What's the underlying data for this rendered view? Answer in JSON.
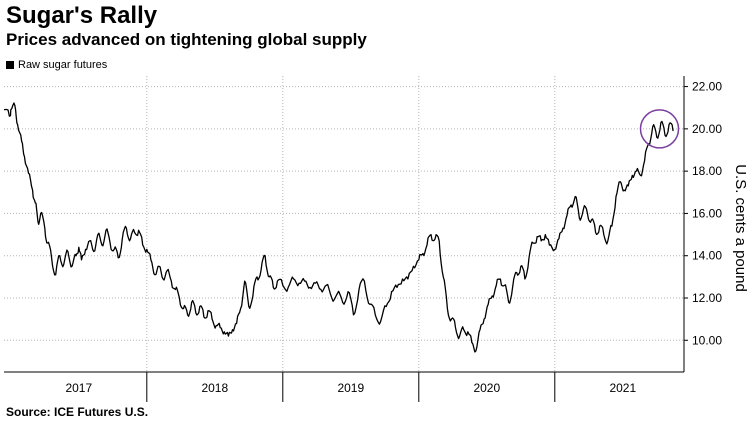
{
  "chart_data": {
    "type": "line",
    "title": "Sugar's Rally",
    "subtitle": "Prices advanced on tightening global supply",
    "source": "Source: ICE Futures U.S.",
    "ylabel": "U.S. cents a pound",
    "y_axis_position": "right",
    "ylim": [
      8.5,
      22.5
    ],
    "yticks": [
      "10.00",
      "12.00",
      "14.00",
      "16.00",
      "18.00",
      "20.00",
      "22.00"
    ],
    "xlim": [
      2016.95,
      2021.95
    ],
    "x_ticks": [
      {
        "label": "2017",
        "x": 2017.5
      },
      {
        "label": "2018",
        "x": 2018.5
      },
      {
        "label": "2019",
        "x": 2019.5
      },
      {
        "label": "2020",
        "x": 2020.5
      },
      {
        "label": "2021",
        "x": 2021.5
      }
    ],
    "x_separators": [
      2018.0,
      2019.0,
      2020.0,
      2021.0
    ],
    "grid": true,
    "legend": "top-left",
    "highlight": {
      "x": 2021.77,
      "y": 20.0,
      "shape": "circle",
      "color": "#7b3fa0"
    },
    "series": [
      {
        "name": "Raw sugar futures",
        "color": "#000000",
        "x": [
          2016.95,
          2016.99,
          2017.0,
          2017.03,
          2017.05,
          2017.08,
          2017.1,
          2017.13,
          2017.16,
          2017.18,
          2017.2,
          2017.22,
          2017.25,
          2017.27,
          2017.3,
          2017.33,
          2017.36,
          2017.39,
          2017.42,
          2017.45,
          2017.48,
          2017.5,
          2017.52,
          2017.55,
          2017.58,
          2017.61,
          2017.64,
          2017.67,
          2017.7,
          2017.73,
          2017.76,
          2017.79,
          2017.82,
          2017.85,
          2017.88,
          2017.91,
          2017.94,
          2017.97,
          2018.0,
          2018.03,
          2018.06,
          2018.09,
          2018.12,
          2018.15,
          2018.18,
          2018.21,
          2018.24,
          2018.27,
          2018.3,
          2018.33,
          2018.36,
          2018.39,
          2018.42,
          2018.45,
          2018.48,
          2018.51,
          2018.54,
          2018.57,
          2018.6,
          2018.63,
          2018.66,
          2018.69,
          2018.72,
          2018.75,
          2018.78,
          2018.81,
          2018.84,
          2018.87,
          2018.9,
          2018.93,
          2018.96,
          2019.0,
          2019.04,
          2019.08,
          2019.12,
          2019.16,
          2019.2,
          2019.24,
          2019.28,
          2019.32,
          2019.36,
          2019.4,
          2019.44,
          2019.48,
          2019.52,
          2019.56,
          2019.6,
          2019.64,
          2019.68,
          2019.72,
          2019.76,
          2019.8,
          2019.84,
          2019.88,
          2019.92,
          2019.96,
          2020.0,
          2020.03,
          2020.06,
          2020.09,
          2020.12,
          2020.15,
          2020.18,
          2020.21,
          2020.24,
          2020.27,
          2020.3,
          2020.33,
          2020.36,
          2020.39,
          2020.42,
          2020.45,
          2020.48,
          2020.51,
          2020.54,
          2020.57,
          2020.6,
          2020.63,
          2020.66,
          2020.69,
          2020.72,
          2020.75,
          2020.78,
          2020.81,
          2020.84,
          2020.87,
          2020.9,
          2020.93,
          2020.96,
          2021.0,
          2021.03,
          2021.06,
          2021.09,
          2021.12,
          2021.15,
          2021.18,
          2021.21,
          2021.24,
          2021.27,
          2021.3,
          2021.33,
          2021.36,
          2021.39,
          2021.42,
          2021.45,
          2021.48,
          2021.51,
          2021.54,
          2021.57,
          2021.6,
          2021.63,
          2021.66,
          2021.69,
          2021.72,
          2021.75,
          2021.78,
          2021.81,
          2021.84,
          2021.87
        ],
        "y": [
          20.9,
          20.6,
          20.9,
          21.1,
          20.2,
          19.4,
          18.7,
          17.9,
          17.1,
          16.5,
          15.6,
          16.0,
          15.3,
          14.6,
          13.9,
          13.1,
          14.0,
          13.6,
          14.2,
          13.5,
          14.0,
          14.4,
          13.8,
          14.3,
          14.7,
          14.2,
          15.0,
          14.5,
          15.2,
          14.6,
          14.3,
          13.9,
          14.8,
          15.3,
          14.8,
          15.1,
          15.2,
          14.5,
          14.3,
          13.8,
          13.1,
          13.5,
          12.9,
          13.3,
          12.8,
          12.4,
          12.0,
          11.5,
          11.2,
          11.8,
          11.3,
          11.6,
          11.1,
          11.4,
          11.0,
          10.7,
          10.6,
          10.4,
          10.2,
          10.5,
          10.8,
          11.5,
          12.8,
          11.6,
          12.1,
          13.0,
          13.3,
          14.0,
          13.0,
          12.5,
          12.8,
          12.6,
          12.5,
          12.9,
          12.7,
          12.8,
          12.5,
          12.7,
          12.4,
          12.6,
          12.0,
          12.2,
          11.8,
          12.3,
          11.2,
          12.4,
          12.8,
          11.7,
          11.2,
          10.9,
          11.6,
          12.3,
          12.5,
          12.9,
          12.9,
          13.5,
          13.8,
          14.1,
          14.5,
          15.0,
          14.8,
          14.7,
          13.0,
          11.5,
          11.0,
          10.6,
          10.2,
          10.5,
          10.4,
          9.9,
          9.5,
          10.5,
          11.0,
          11.7,
          12.1,
          12.6,
          12.9,
          12.6,
          11.8,
          12.5,
          13.2,
          13.5,
          12.9,
          13.9,
          14.6,
          14.9,
          14.7,
          15.0,
          14.5,
          14.3,
          14.8,
          15.3,
          15.9,
          16.4,
          16.8,
          15.8,
          16.2,
          16.0,
          15.7,
          15.1,
          15.4,
          15.0,
          14.7,
          15.4,
          16.8,
          17.5,
          17.1,
          17.3,
          17.8,
          18.0,
          17.8,
          18.5,
          19.3,
          20.1,
          19.6,
          20.3,
          19.7,
          20.2,
          19.9
        ]
      }
    ]
  }
}
